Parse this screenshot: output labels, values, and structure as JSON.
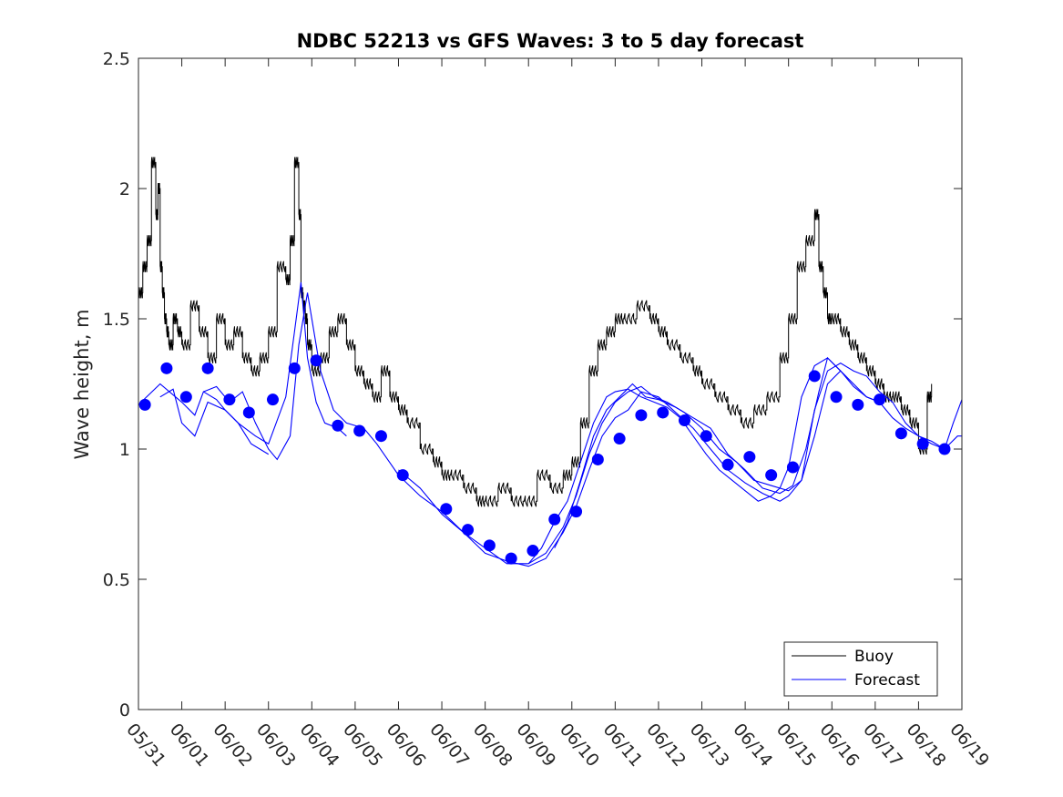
{
  "chart_data": {
    "type": "line",
    "title": "NDBC 52213 vs GFS Waves: 3 to 5 day forecast",
    "xlabel": "",
    "ylabel": "Wave height, m",
    "xlim": [
      "05/31",
      "06/19"
    ],
    "ylim": [
      0,
      2.5
    ],
    "yticks": [
      "0",
      "0.5",
      "1",
      "1.5",
      "2",
      "2.5"
    ],
    "xticks": [
      "05/31",
      "06/01",
      "06/02",
      "06/03",
      "06/04",
      "06/05",
      "06/06",
      "06/07",
      "06/08",
      "06/09",
      "06/10",
      "06/11",
      "06/12",
      "06/13",
      "06/14",
      "06/15",
      "06/16",
      "06/17",
      "06/18",
      "06/19"
    ],
    "grid": false,
    "legend_position": "bottom-right",
    "colors": {
      "buoy": "#000000",
      "forecast": "#0000ff",
      "markers": "#0000ff"
    },
    "series": [
      {
        "name": "Buoy",
        "style": "step",
        "x_days": [
          0,
          0.1,
          0.2,
          0.3,
          0.4,
          0.45,
          0.5,
          0.55,
          0.6,
          0.65,
          0.7,
          0.8,
          0.9,
          1.0,
          1.2,
          1.4,
          1.6,
          1.8,
          2.0,
          2.2,
          2.4,
          2.6,
          2.8,
          3.0,
          3.2,
          3.4,
          3.5,
          3.6,
          3.7,
          3.75,
          3.8,
          3.85,
          3.9,
          4.0,
          4.2,
          4.4,
          4.6,
          4.8,
          5.0,
          5.2,
          5.4,
          5.6,
          5.8,
          6.0,
          6.2,
          6.5,
          6.8,
          7.0,
          7.2,
          7.5,
          7.8,
          8.0,
          8.3,
          8.6,
          8.9,
          9.2,
          9.5,
          9.8,
          10.0,
          10.2,
          10.4,
          10.6,
          10.8,
          11.0,
          11.2,
          11.5,
          11.8,
          12.0,
          12.2,
          12.5,
          12.8,
          13.0,
          13.3,
          13.6,
          13.9,
          14.2,
          14.5,
          14.8,
          15.0,
          15.2,
          15.4,
          15.6,
          15.7,
          15.8,
          15.9,
          16.0,
          16.2,
          16.4,
          16.6,
          16.8,
          17.0,
          17.2,
          17.4,
          17.6,
          17.8,
          18.0,
          18.2,
          18.3
        ],
        "values": [
          1.6,
          1.7,
          1.8,
          2.1,
          1.9,
          2.0,
          1.7,
          1.6,
          1.5,
          1.45,
          1.4,
          1.5,
          1.45,
          1.4,
          1.55,
          1.45,
          1.35,
          1.5,
          1.4,
          1.45,
          1.35,
          1.3,
          1.35,
          1.45,
          1.7,
          1.65,
          1.8,
          2.1,
          1.9,
          1.6,
          1.55,
          1.5,
          1.4,
          1.3,
          1.35,
          1.45,
          1.5,
          1.4,
          1.3,
          1.25,
          1.2,
          1.3,
          1.2,
          1.15,
          1.1,
          1.0,
          0.95,
          0.9,
          0.9,
          0.85,
          0.8,
          0.8,
          0.85,
          0.8,
          0.8,
          0.9,
          0.85,
          0.9,
          0.95,
          1.1,
          1.3,
          1.4,
          1.45,
          1.5,
          1.5,
          1.55,
          1.5,
          1.45,
          1.4,
          1.35,
          1.3,
          1.25,
          1.2,
          1.15,
          1.1,
          1.15,
          1.2,
          1.35,
          1.5,
          1.7,
          1.8,
          1.9,
          1.7,
          1.6,
          1.5,
          1.5,
          1.45,
          1.4,
          1.35,
          1.3,
          1.25,
          1.2,
          1.2,
          1.15,
          1.1,
          1.0,
          1.2,
          1.25
        ]
      },
      {
        "name": "Forecast",
        "style": "lines",
        "lines": [
          {
            "x_days": [
              0,
              0.5,
              1.0,
              1.3,
              1.5,
              1.8,
              2.0,
              2.3,
              2.6,
              3.0
            ],
            "values": [
              1.17,
              1.25,
              1.18,
              1.13,
              1.22,
              1.19,
              1.15,
              1.1,
              1.02,
              0.98
            ]
          },
          {
            "x_days": [
              0.5,
              0.8,
              1.0,
              1.3,
              1.6,
              2.0,
              2.3,
              2.7,
              3.0,
              3.4,
              3.6,
              3.75,
              3.9,
              4.1,
              4.3,
              4.6,
              4.8
            ],
            "values": [
              1.2,
              1.23,
              1.1,
              1.05,
              1.18,
              1.15,
              1.1,
              1.05,
              1.02,
              1.2,
              1.45,
              1.64,
              1.35,
              1.18,
              1.1,
              1.08,
              1.05
            ]
          },
          {
            "x_days": [
              1.5,
              1.8,
              2.1,
              2.4,
              2.7,
              3.0,
              3.2,
              3.5,
              3.7,
              3.9,
              4.2,
              4.5,
              4.8,
              5.2,
              5.5,
              6.0,
              6.5,
              7.0,
              7.5,
              8.0,
              8.5,
              9.0,
              9.3,
              9.6,
              9.9,
              10.2,
              10.5,
              10.8,
              11.0,
              11.3,
              11.6,
              11.9,
              12.2,
              12.5,
              12.8,
              13.1,
              13.4,
              13.7,
              14.0,
              14.3,
              14.6,
              14.8,
              15.0,
              15.3,
              15.6,
              15.9,
              16.2,
              16.5,
              16.8,
              17.1,
              17.4,
              17.7,
              18.0,
              18.3,
              18.6,
              18.9,
              19.0
            ],
            "values": [
              1.22,
              1.24,
              1.18,
              1.22,
              1.1,
              1.0,
              0.96,
              1.05,
              1.4,
              1.6,
              1.3,
              1.15,
              1.1,
              1.08,
              1.02,
              0.9,
              0.82,
              0.76,
              0.68,
              0.62,
              0.56,
              0.56,
              0.62,
              0.72,
              0.8,
              0.95,
              1.1,
              1.2,
              1.22,
              1.23,
              1.2,
              1.18,
              1.16,
              1.12,
              1.05,
              0.98,
              0.92,
              0.88,
              0.84,
              0.8,
              0.82,
              0.85,
              0.93,
              1.2,
              1.32,
              1.35,
              1.3,
              1.25,
              1.2,
              1.18,
              1.12,
              1.08,
              1.05,
              1.02,
              1.0,
              1.05,
              1.05
            ]
          },
          {
            "x_days": [
              6.0,
              6.5,
              7.0,
              7.5,
              8.0,
              8.5,
              9.0,
              9.4,
              9.8,
              10.1,
              10.4,
              10.7,
              11.0,
              11.3,
              11.6,
              12.0,
              12.4,
              12.8,
              13.2,
              13.6,
              14.0,
              14.4,
              14.8,
              15.0,
              15.3,
              15.6,
              15.9,
              16.2,
              16.5,
              16.8,
              17.1,
              17.4,
              17.7,
              18.0,
              18.3,
              18.6,
              18.8,
              19.0
            ],
            "values": [
              0.92,
              0.85,
              0.75,
              0.68,
              0.6,
              0.57,
              0.55,
              0.58,
              0.68,
              0.78,
              0.92,
              1.05,
              1.12,
              1.15,
              1.22,
              1.2,
              1.14,
              1.08,
              1.0,
              0.92,
              0.87,
              0.83,
              0.8,
              0.82,
              0.88,
              1.15,
              1.3,
              1.33,
              1.3,
              1.28,
              1.22,
              1.18,
              1.1,
              1.05,
              1.03,
              1.0,
              1.1,
              1.19
            ]
          },
          {
            "x_days": [
              9.0,
              9.4,
              9.8,
              10.1,
              10.4,
              10.7,
              11.0,
              11.3,
              11.6,
              11.9,
              12.2,
              12.6,
              13.0,
              13.4,
              13.8,
              14.2,
              14.6,
              15.0,
              15.3,
              15.6,
              15.9,
              16.2,
              16.5,
              16.8,
              17.1
            ],
            "values": [
              0.56,
              0.6,
              0.7,
              0.82,
              0.98,
              1.1,
              1.18,
              1.22,
              1.24,
              1.2,
              1.18,
              1.14,
              1.08,
              1.0,
              0.95,
              0.88,
              0.86,
              0.84,
              0.88,
              1.05,
              1.25,
              1.3,
              1.24,
              1.2,
              1.18
            ]
          },
          {
            "x_days": [
              9.6,
              9.9,
              10.2,
              10.5,
              10.8,
              11.1,
              11.4,
              11.7,
              12.0,
              12.4,
              12.8,
              13.2,
              13.6,
              14.0,
              14.4,
              14.8,
              15.1,
              15.4,
              15.7,
              15.9,
              16.2
            ],
            "values": [
              0.62,
              0.72,
              0.88,
              1.05,
              1.15,
              1.2,
              1.25,
              1.2,
              1.19,
              1.16,
              1.12,
              1.08,
              0.98,
              0.92,
              0.85,
              0.83,
              0.86,
              1.0,
              1.22,
              1.35,
              1.3
            ]
          }
        ]
      },
      {
        "name": "",
        "style": "markers",
        "x_days": [
          0.15,
          0.65,
          1.1,
          1.6,
          2.1,
          2.55,
          3.1,
          3.6,
          4.1,
          4.6,
          5.1,
          5.6,
          6.1,
          7.1,
          7.6,
          8.1,
          8.6,
          9.1,
          9.6,
          10.1,
          10.6,
          11.1,
          11.6,
          12.1,
          12.6,
          13.1,
          13.6,
          14.1,
          14.6,
          15.1,
          15.6,
          16.1,
          16.6,
          17.1,
          17.6,
          18.1,
          18.6
        ],
        "values": [
          1.17,
          1.31,
          1.2,
          1.31,
          1.19,
          1.14,
          1.19,
          1.31,
          1.34,
          1.09,
          1.07,
          1.05,
          0.9,
          0.77,
          0.69,
          0.63,
          0.58,
          0.61,
          0.73,
          0.76,
          0.96,
          1.04,
          1.13,
          1.14,
          1.11,
          1.05,
          0.94,
          0.97,
          0.9,
          0.93,
          1.28,
          1.2,
          1.17,
          1.19,
          1.06,
          1.02,
          1.0
        ]
      }
    ],
    "legend": [
      {
        "label": "Buoy",
        "color": "#000000"
      },
      {
        "label": "Forecast",
        "color": "#0000ff"
      }
    ]
  }
}
